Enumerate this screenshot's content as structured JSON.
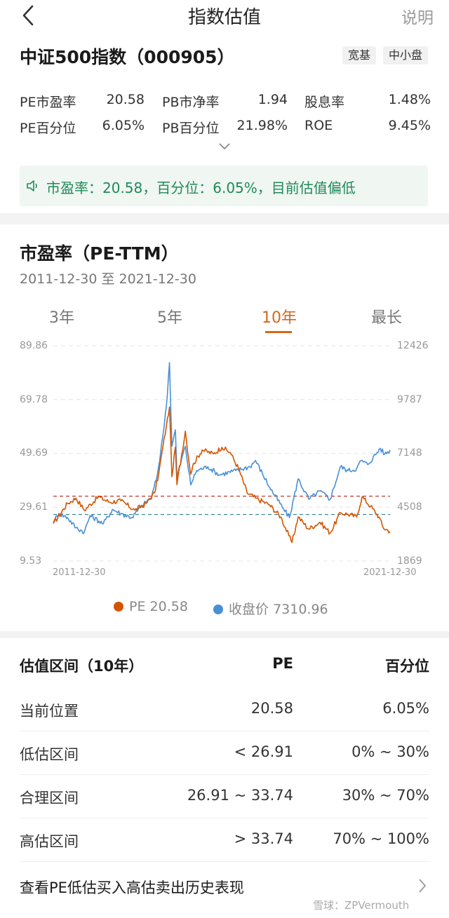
{
  "nav": {
    "title": "指数估值",
    "explain_label": "说明"
  },
  "index": {
    "title": "中证500指数（000905）",
    "tags": [
      "宽基",
      "中小盘"
    ]
  },
  "metrics": [
    {
      "label": "PE市盈率",
      "value": "20.58"
    },
    {
      "label": "PB市净率",
      "value": "1.94"
    },
    {
      "label": "股息率",
      "value": "1.48%"
    },
    {
      "label": "PE百分位",
      "value": "6.05%"
    },
    {
      "label": "PB百分位",
      "value": "21.98%"
    },
    {
      "label": "ROE",
      "value": "9.45%"
    }
  ],
  "tip": {
    "text": "市盈率：20.58，百分位：6.05%，目前估值偏低"
  },
  "chart_section": {
    "title": "市盈率（PE-TTM）",
    "date_range": "2011-12-30 至 2021-12-30",
    "tabs": [
      "3年",
      "5年",
      "10年",
      "最长"
    ],
    "active_tab": 2
  },
  "chart_data": {
    "type": "line",
    "x_start": "2011-12-30",
    "x_end": "2021-12-30",
    "x_tick_labels": [
      "2011-12-30",
      "2021-12-30"
    ],
    "y_left_ticks": [
      "89.86",
      "69.78",
      "49.69",
      "29.61",
      "9.53"
    ],
    "y_right_ticks": [
      "12426",
      "9787",
      "7148",
      "4508",
      "1869"
    ],
    "ylim_left": [
      9.53,
      89.86
    ],
    "ylim_right": [
      1869,
      12426
    ],
    "reference_lines": [
      {
        "value": 33.74,
        "color": "#c0392b"
      },
      {
        "value": 26.91,
        "color": "#2f7f8f"
      }
    ],
    "series": [
      {
        "name": "PE",
        "legend_value": "20.58",
        "color": "#d35400",
        "axis": "left",
        "points": [
          [
            "2011-12-30",
            23.5
          ],
          [
            "2012-06-01",
            31.0
          ],
          [
            "2012-09-01",
            33.0
          ],
          [
            "2012-12-01",
            28.5
          ],
          [
            "2013-05-01",
            33.5
          ],
          [
            "2013-09-01",
            31.5
          ],
          [
            "2014-01-01",
            32.0
          ],
          [
            "2014-06-01",
            28.5
          ],
          [
            "2014-10-01",
            31.0
          ],
          [
            "2015-01-01",
            35.0
          ],
          [
            "2015-02-15",
            42.0
          ],
          [
            "2015-04-01",
            52.0
          ],
          [
            "2015-05-10",
            60.0
          ],
          [
            "2015-06-12",
            67.0
          ],
          [
            "2015-07-08",
            41.0
          ],
          [
            "2015-08-15",
            52.0
          ],
          [
            "2015-09-01",
            38.0
          ],
          [
            "2015-12-01",
            58.0
          ],
          [
            "2016-01-28",
            42.0
          ],
          [
            "2016-03-01",
            46.0
          ],
          [
            "2016-06-01",
            51.0
          ],
          [
            "2016-10-01",
            49.5
          ],
          [
            "2017-01-01",
            52.0
          ],
          [
            "2017-04-01",
            50.0
          ],
          [
            "2017-07-01",
            44.0
          ],
          [
            "2017-10-01",
            35.0
          ],
          [
            "2018-01-01",
            33.0
          ],
          [
            "2018-06-01",
            30.5
          ],
          [
            "2018-10-01",
            26.0
          ],
          [
            "2018-12-28",
            19.0
          ],
          [
            "2019-01-31",
            16.5
          ],
          [
            "2019-04-08",
            26.0
          ],
          [
            "2019-08-01",
            21.5
          ],
          [
            "2019-12-01",
            24.0
          ],
          [
            "2020-03-20",
            20.0
          ],
          [
            "2020-07-10",
            27.5
          ],
          [
            "2020-10-01",
            27.0
          ],
          [
            "2021-01-01",
            26.0
          ],
          [
            "2021-03-01",
            33.5
          ],
          [
            "2021-06-01",
            30.0
          ],
          [
            "2021-09-01",
            26.0
          ],
          [
            "2021-10-15",
            22.0
          ],
          [
            "2021-12-30",
            20.58
          ]
        ]
      },
      {
        "name": "收盘价",
        "legend_value": "7310.96",
        "color": "#4a8fd6",
        "axis": "right",
        "points": [
          [
            "2011-12-30",
            3800
          ],
          [
            "2012-03-01",
            4200
          ],
          [
            "2012-06-01",
            4000
          ],
          [
            "2012-09-01",
            3500
          ],
          [
            "2012-12-01",
            3300
          ],
          [
            "2013-02-01",
            4100
          ],
          [
            "2013-06-25",
            3700
          ],
          [
            "2013-10-01",
            4400
          ],
          [
            "2014-01-01",
            4200
          ],
          [
            "2014-05-01",
            4000
          ],
          [
            "2014-08-01",
            4500
          ],
          [
            "2014-12-01",
            5000
          ],
          [
            "2015-02-01",
            6100
          ],
          [
            "2015-04-01",
            8000
          ],
          [
            "2015-05-10",
            9500
          ],
          [
            "2015-06-12",
            11600
          ],
          [
            "2015-07-08",
            7500
          ],
          [
            "2015-08-15",
            8300
          ],
          [
            "2015-09-01",
            6000
          ],
          [
            "2015-12-01",
            7500
          ],
          [
            "2016-01-28",
            5600
          ],
          [
            "2016-04-01",
            6300
          ],
          [
            "2016-08-01",
            6500
          ],
          [
            "2016-12-01",
            6100
          ],
          [
            "2017-06-01",
            6300
          ],
          [
            "2017-11-01",
            6500
          ],
          [
            "2018-01-01",
            6800
          ],
          [
            "2018-06-01",
            5500
          ],
          [
            "2018-10-19",
            4500
          ],
          [
            "2019-01-04",
            4000
          ],
          [
            "2019-04-08",
            5900
          ],
          [
            "2019-08-01",
            4900
          ],
          [
            "2019-12-01",
            5300
          ],
          [
            "2020-03-20",
            4900
          ],
          [
            "2020-07-10",
            6500
          ],
          [
            "2020-10-01",
            6300
          ],
          [
            "2021-01-01",
            6400
          ],
          [
            "2021-02-20",
            6800
          ],
          [
            "2021-05-01",
            6600
          ],
          [
            "2021-09-15",
            7400
          ],
          [
            "2021-11-01",
            7100
          ],
          [
            "2021-12-30",
            7310.96
          ]
        ]
      }
    ],
    "legend_placement": "bottom"
  },
  "valuation_table": {
    "headers": [
      "估值区间（10年）",
      "PE",
      "百分位"
    ],
    "rows": [
      [
        "当前位置",
        "20.58",
        "6.05%"
      ],
      [
        "低估区间",
        "< 26.91",
        "0% ~ 30%"
      ],
      [
        "合理区间",
        "26.91 ~ 33.74",
        "30% ~ 70%"
      ],
      [
        "高估区间",
        "> 33.74",
        "70% ~ 100%"
      ]
    ]
  },
  "history_link": {
    "label": "查看PE低估买入高估卖出历史表现"
  },
  "watermark": "雪球：ZPVermouth",
  "colors": {
    "accent_orange": "#d2691e",
    "tip_green": "#1f8a58"
  }
}
